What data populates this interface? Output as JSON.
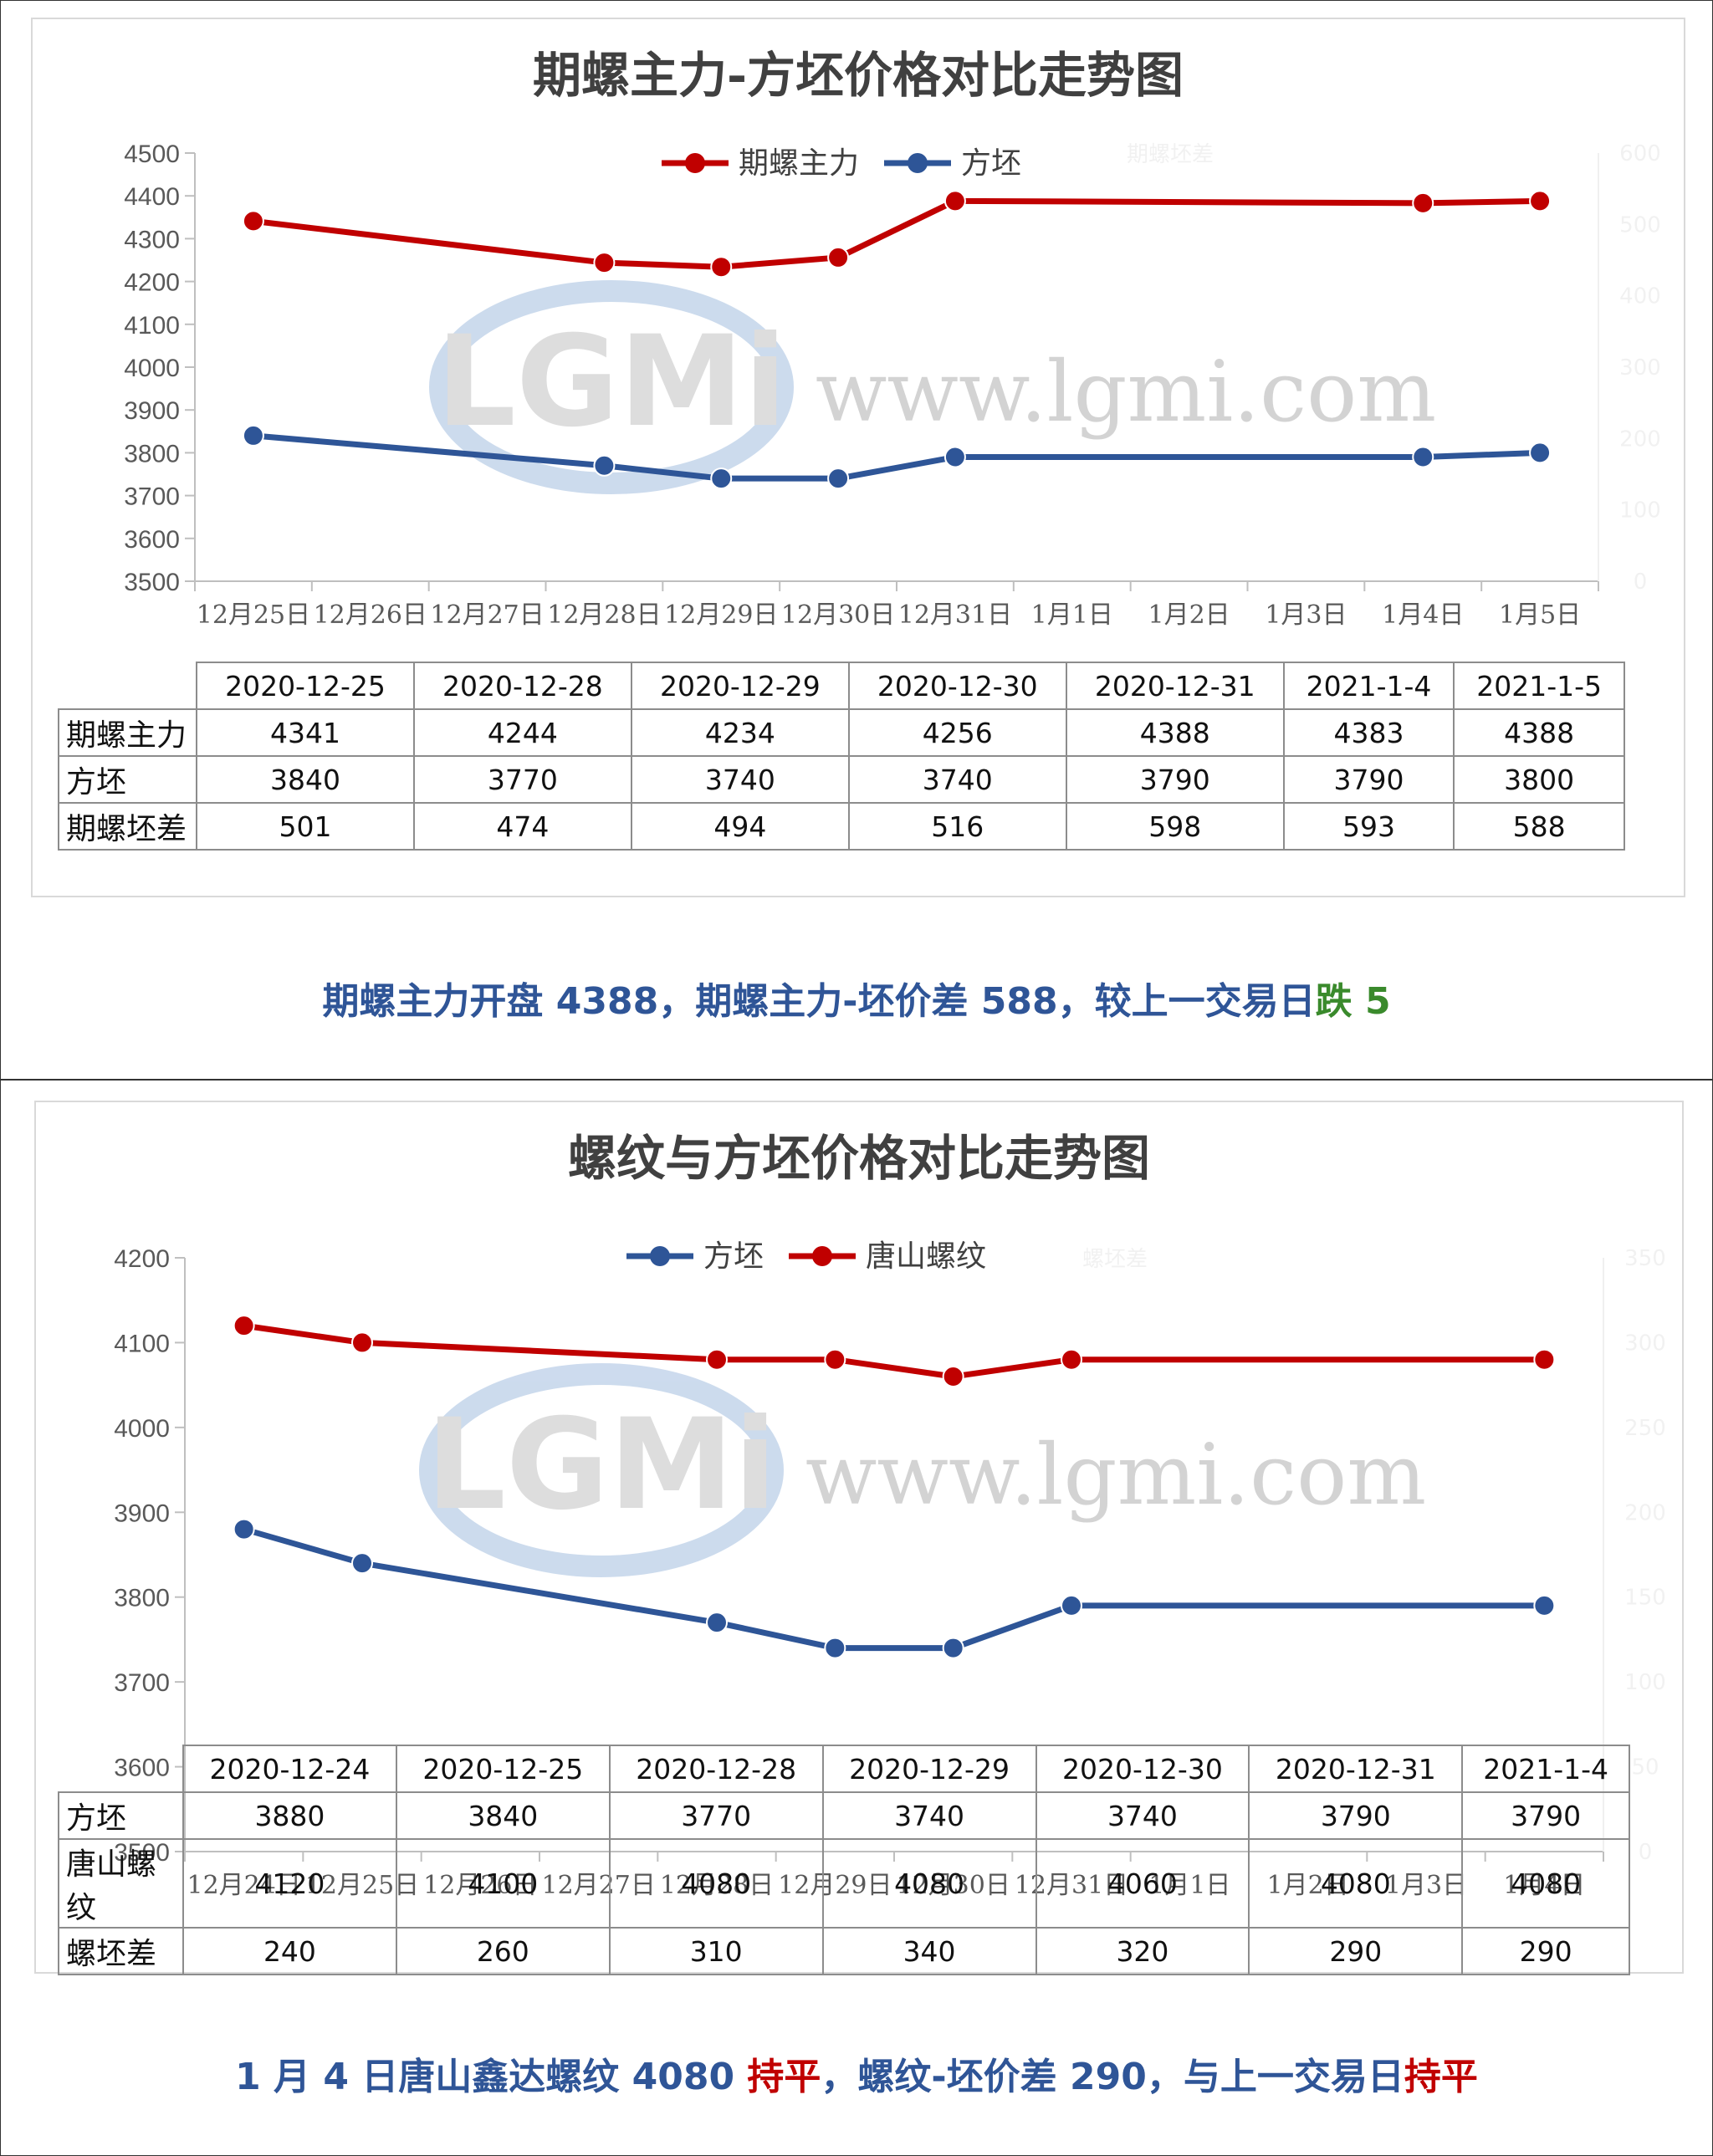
{
  "panel1": {
    "title": "期螺主力-方坯价格对比走势图",
    "legend": [
      {
        "name": "期螺主力",
        "color": "#c00000"
      },
      {
        "name": "方坯",
        "color": "#2e5597"
      }
    ],
    "watermark": {
      "logo": "LGMi",
      "url": "www.lgmi.com",
      "faint_right_labels": [
        "期螺坯差",
        "600",
        "500",
        "400",
        "300",
        "200",
        "100",
        "0"
      ]
    },
    "table": {
      "headers": [
        "2020-12-25",
        "2020-12-28",
        "2020-12-29",
        "2020-12-30",
        "2020-12-31",
        "2021-1-4",
        "2021-1-5"
      ],
      "rows": [
        {
          "label": "期螺主力",
          "values": [
            "4341",
            "4244",
            "4234",
            "4256",
            "4388",
            "4383",
            "4388"
          ]
        },
        {
          "label": "方坯",
          "values": [
            "3840",
            "3770",
            "3740",
            "3740",
            "3790",
            "3790",
            "3800"
          ]
        },
        {
          "label": "期螺坯差",
          "values": [
            "501",
            "474",
            "494",
            "516",
            "598",
            "593",
            "588"
          ]
        }
      ]
    },
    "summary": {
      "main": "期螺主力开盘 4388，期螺主力-坯价差 588，较上一交易日",
      "change": "跌 5"
    }
  },
  "panel2": {
    "title": "螺纹与方坯价格对比走势图",
    "legend": [
      {
        "name": "方坯",
        "color": "#2e5597"
      },
      {
        "name": "唐山螺纹",
        "color": "#c00000"
      }
    ],
    "watermark": {
      "logo": "LGMi",
      "url": "www.lgmi.com",
      "faint_right_labels": [
        "螺坯差",
        "350",
        "300",
        "250",
        "200",
        "150",
        "100",
        "50",
        "0"
      ]
    },
    "table": {
      "headers": [
        "2020-12-24",
        "2020-12-25",
        "2020-12-28",
        "2020-12-29",
        "2020-12-30",
        "2020-12-31",
        "2021-1-4"
      ],
      "rows": [
        {
          "label": "方坯",
          "values": [
            "3880",
            "3840",
            "3770",
            "3740",
            "3740",
            "3790",
            "3790"
          ]
        },
        {
          "label": "唐山螺纹",
          "values": [
            "4120",
            "4100",
            "4080",
            "4080",
            "4060",
            "4080",
            "4080"
          ]
        },
        {
          "label": "螺坯差",
          "values": [
            "240",
            "260",
            "310",
            "340",
            "320",
            "290",
            "290"
          ]
        }
      ]
    },
    "summary": {
      "part1": "1 月 4 日唐山鑫达螺纹 4080 ",
      "flat1": "持平",
      "part2": "，螺纹-坯价差 290，与上一交易日",
      "flat2": "持平"
    }
  },
  "chart_data": [
    {
      "type": "line",
      "title": "期螺主力-方坯价格对比走势图",
      "categories": [
        "12月25日",
        "12月26日",
        "12月27日",
        "12月28日",
        "12月29日",
        "12月30日",
        "12月31日",
        "1月1日",
        "1月2日",
        "1月3日",
        "1月4日",
        "1月5日"
      ],
      "ylim": [
        3500,
        4500
      ],
      "yticks": [
        3500,
        3600,
        3700,
        3800,
        3900,
        4000,
        4100,
        4200,
        4300,
        4400,
        4500
      ],
      "legend": "top",
      "grid": false,
      "series": [
        {
          "name": "期螺主力",
          "color": "#c00000",
          "points": [
            [
              "12月25日",
              4341
            ],
            [
              "12月28日",
              4244
            ],
            [
              "12月29日",
              4234
            ],
            [
              "12月30日",
              4256
            ],
            [
              "12月31日",
              4388
            ],
            [
              "1月4日",
              4383
            ],
            [
              "1月5日",
              4388
            ]
          ]
        },
        {
          "name": "方坯",
          "color": "#2e5597",
          "points": [
            [
              "12月25日",
              3840
            ],
            [
              "12月28日",
              3770
            ],
            [
              "12月29日",
              3740
            ],
            [
              "12月30日",
              3740
            ],
            [
              "12月31日",
              3790
            ],
            [
              "1月4日",
              3790
            ],
            [
              "1月5日",
              3800
            ]
          ]
        }
      ]
    },
    {
      "type": "line",
      "title": "螺纹与方坯价格对比走势图",
      "categories": [
        "12月24日",
        "12月25日",
        "12月26日",
        "12月27日",
        "12月28日",
        "12月29日",
        "12月30日",
        "12月31日",
        "1月1日",
        "1月2日",
        "1月3日",
        "1月4日"
      ],
      "ylim": [
        3500,
        4200
      ],
      "yticks": [
        3500,
        3600,
        3700,
        3800,
        3900,
        4000,
        4100,
        4200
      ],
      "legend": "top",
      "grid": false,
      "series": [
        {
          "name": "方坯",
          "color": "#2e5597",
          "points": [
            [
              "12月24日",
              3880
            ],
            [
              "12月25日",
              3840
            ],
            [
              "12月28日",
              3770
            ],
            [
              "12月29日",
              3740
            ],
            [
              "12月30日",
              3740
            ],
            [
              "12月31日",
              3790
            ],
            [
              "1月4日",
              3790
            ]
          ]
        },
        {
          "name": "唐山螺纹",
          "color": "#c00000",
          "points": [
            [
              "12月24日",
              4120
            ],
            [
              "12月25日",
              4100
            ],
            [
              "12月28日",
              4080
            ],
            [
              "12月29日",
              4080
            ],
            [
              "12月30日",
              4060
            ],
            [
              "12月31日",
              4080
            ],
            [
              "1月4日",
              4080
            ]
          ]
        }
      ]
    }
  ]
}
